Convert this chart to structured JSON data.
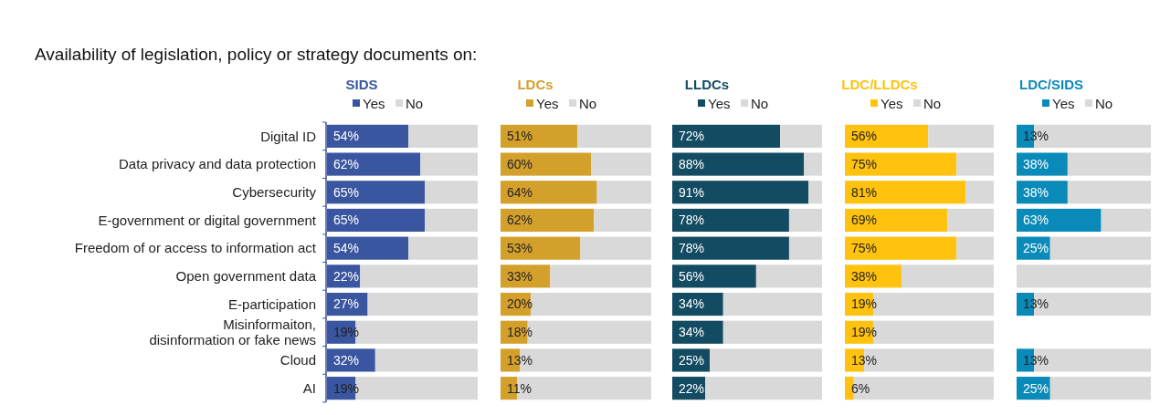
{
  "chart_data": [
    {
      "type": "bar",
      "orientation": "horizontal",
      "stacked": true,
      "title": "SIDS",
      "annotations": [
        "Availability of legislation, policy or strategy documents on:"
      ],
      "categories": [
        "Digital ID",
        "Data privacy and data protection",
        "Cybersecurity",
        "E-government or digital government",
        "Freedom of or access to information act",
        "Open government data",
        "E-participation",
        "Misinformaiton,\ndisinformation or fake news",
        "Cloud",
        "AI"
      ],
      "xlim": [
        0,
        100
      ],
      "legend": "top",
      "tick_labels": "y",
      "series": [
        {
          "name": "Yes",
          "color": "#3a56a0",
          "values": [
            54,
            62,
            65,
            65,
            54,
            22,
            27,
            19,
            32,
            19
          ],
          "value_labels": [
            "54%",
            "62%",
            "65%",
            "65%",
            "54%",
            "22%",
            "27%",
            "19%",
            "32%",
            "19%"
          ]
        },
        {
          "name": "No",
          "color": "#d9d9d9",
          "values": [
            46,
            38,
            35,
            35,
            46,
            78,
            73,
            81,
            68,
            81
          ]
        }
      ]
    },
    {
      "type": "bar",
      "orientation": "horizontal",
      "stacked": true,
      "title": "LDCs",
      "categories": [
        null,
        null,
        null,
        null,
        null,
        null,
        null,
        null,
        null,
        null
      ],
      "xlim": [
        0,
        100
      ],
      "legend": "top",
      "tick_labels": false,
      "series": [
        {
          "name": "Yes",
          "color": "#d4a02c",
          "values": [
            51,
            60,
            64,
            62,
            53,
            33,
            20,
            18,
            13,
            11
          ],
          "value_labels": [
            "51%",
            "60%",
            "64%",
            "62%",
            "53%",
            "33%",
            "20%",
            "18%",
            "13%",
            "11%"
          ]
        },
        {
          "name": "No",
          "color": "#d9d9d9",
          "values": [
            49,
            40,
            36,
            38,
            47,
            67,
            80,
            82,
            87,
            89
          ]
        }
      ]
    },
    {
      "type": "bar",
      "orientation": "horizontal",
      "stacked": true,
      "title": "LLDCs",
      "categories": [
        null,
        null,
        null,
        null,
        null,
        null,
        null,
        null,
        null,
        null
      ],
      "xlim": [
        0,
        100
      ],
      "legend": "top",
      "tick_labels": false,
      "series": [
        {
          "name": "Yes",
          "color": "#134b63",
          "values": [
            72,
            88,
            91,
            78,
            78,
            56,
            34,
            34,
            25,
            22
          ],
          "value_labels": [
            "72%",
            "88%",
            "91%",
            "78%",
            "78%",
            "56%",
            "34%",
            "34%",
            "25%",
            "22%"
          ]
        },
        {
          "name": "No",
          "color": "#d9d9d9",
          "values": [
            28,
            12,
            9,
            22,
            22,
            44,
            66,
            66,
            75,
            78
          ]
        }
      ]
    },
    {
      "type": "bar",
      "orientation": "horizontal",
      "stacked": true,
      "title": "LDC/LLDCs",
      "categories": [
        null,
        null,
        null,
        null,
        null,
        null,
        null,
        null,
        null,
        null
      ],
      "xlim": [
        0,
        100
      ],
      "legend": "top",
      "tick_labels": false,
      "series": [
        {
          "name": "Yes",
          "color": "#ffc20e",
          "values": [
            56,
            75,
            81,
            69,
            75,
            38,
            19,
            19,
            13,
            6
          ],
          "value_labels": [
            "56%",
            "75%",
            "81%",
            "69%",
            "75%",
            "38%",
            "19%",
            "19%",
            "13%",
            "6%"
          ]
        },
        {
          "name": "No",
          "color": "#d9d9d9",
          "values": [
            44,
            25,
            19,
            31,
            25,
            62,
            81,
            81,
            87,
            94
          ]
        }
      ]
    },
    {
      "type": "bar",
      "orientation": "horizontal",
      "stacked": true,
      "title": "LDC/SIDS",
      "categories": [
        null,
        null,
        null,
        null,
        null,
        null,
        null,
        null,
        null,
        null
      ],
      "xlim": [
        0,
        100
      ],
      "legend": "top",
      "tick_labels": false,
      "series": [
        {
          "name": "Yes",
          "color": "#0a8ab9",
          "values": [
            13,
            38,
            38,
            63,
            25,
            null,
            13,
            null,
            13,
            25
          ],
          "value_labels": [
            "13%",
            "38%",
            "38%",
            "63%",
            "25%",
            null,
            "13%",
            null,
            "13%",
            "25%"
          ]
        },
        {
          "name": "No",
          "color": "#d9d9d9",
          "values": [
            87,
            62,
            62,
            37,
            75,
            100,
            87,
            null,
            87,
            75
          ]
        }
      ]
    }
  ]
}
